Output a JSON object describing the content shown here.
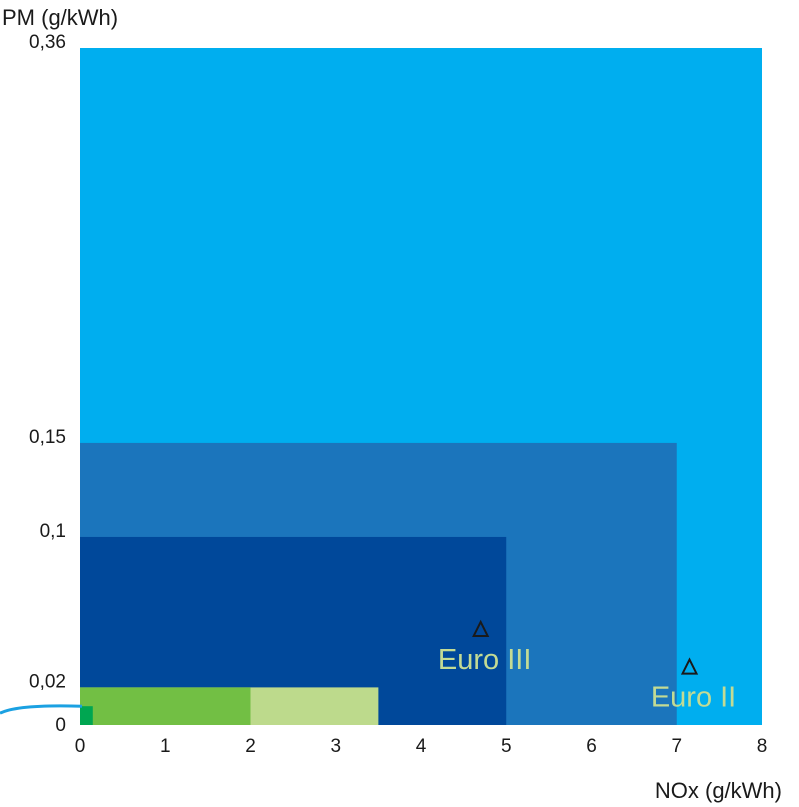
{
  "chart_data": {
    "type": "area",
    "xlabel": "NOx (g/kWh)",
    "ylabel": "PM (g/kWh)",
    "xlim": [
      0,
      8
    ],
    "ylim": [
      0,
      0.36
    ],
    "x_ticks": [
      {
        "value": 0,
        "label": "0"
      },
      {
        "value": 1,
        "label": "1"
      },
      {
        "value": 2,
        "label": "2"
      },
      {
        "value": 3,
        "label": "3"
      },
      {
        "value": 4,
        "label": "4"
      },
      {
        "value": 5,
        "label": "5"
      },
      {
        "value": 6,
        "label": "6"
      },
      {
        "value": 7,
        "label": "7"
      },
      {
        "value": 8,
        "label": "8"
      }
    ],
    "y_ticks": [
      {
        "value": 0,
        "label": "0"
      },
      {
        "value": 0.02,
        "label": "0,02"
      },
      {
        "value": 0.1,
        "label": "0,1"
      },
      {
        "value": 0.15,
        "label": "0,15"
      },
      {
        "value": 0.36,
        "label": "0,36"
      }
    ],
    "regions": [
      {
        "nox_max": 8.0,
        "pm_max": 0.36,
        "color": "#00aeef"
      },
      {
        "nox_max": 7.0,
        "pm_max": 0.15,
        "color": "#1b75bc"
      },
      {
        "nox_max": 5.0,
        "pm_max": 0.1,
        "color": "#00489a"
      },
      {
        "nox_max": 3.5,
        "pm_max": 0.02,
        "color": "#bdda8c"
      },
      {
        "nox_max": 2.0,
        "pm_max": 0.02,
        "color": "#72bf44"
      },
      {
        "nox_max": 0.15,
        "pm_max": 0.01,
        "color": "#00a651"
      }
    ],
    "markers": [
      {
        "label": "Euro III",
        "nox": 4.7,
        "pm": 0.05
      },
      {
        "label": "Euro II",
        "nox": 7.15,
        "pm": 0.03
      }
    ],
    "label_color": "#c3db94",
    "curve_color": "#1ba1e2"
  }
}
